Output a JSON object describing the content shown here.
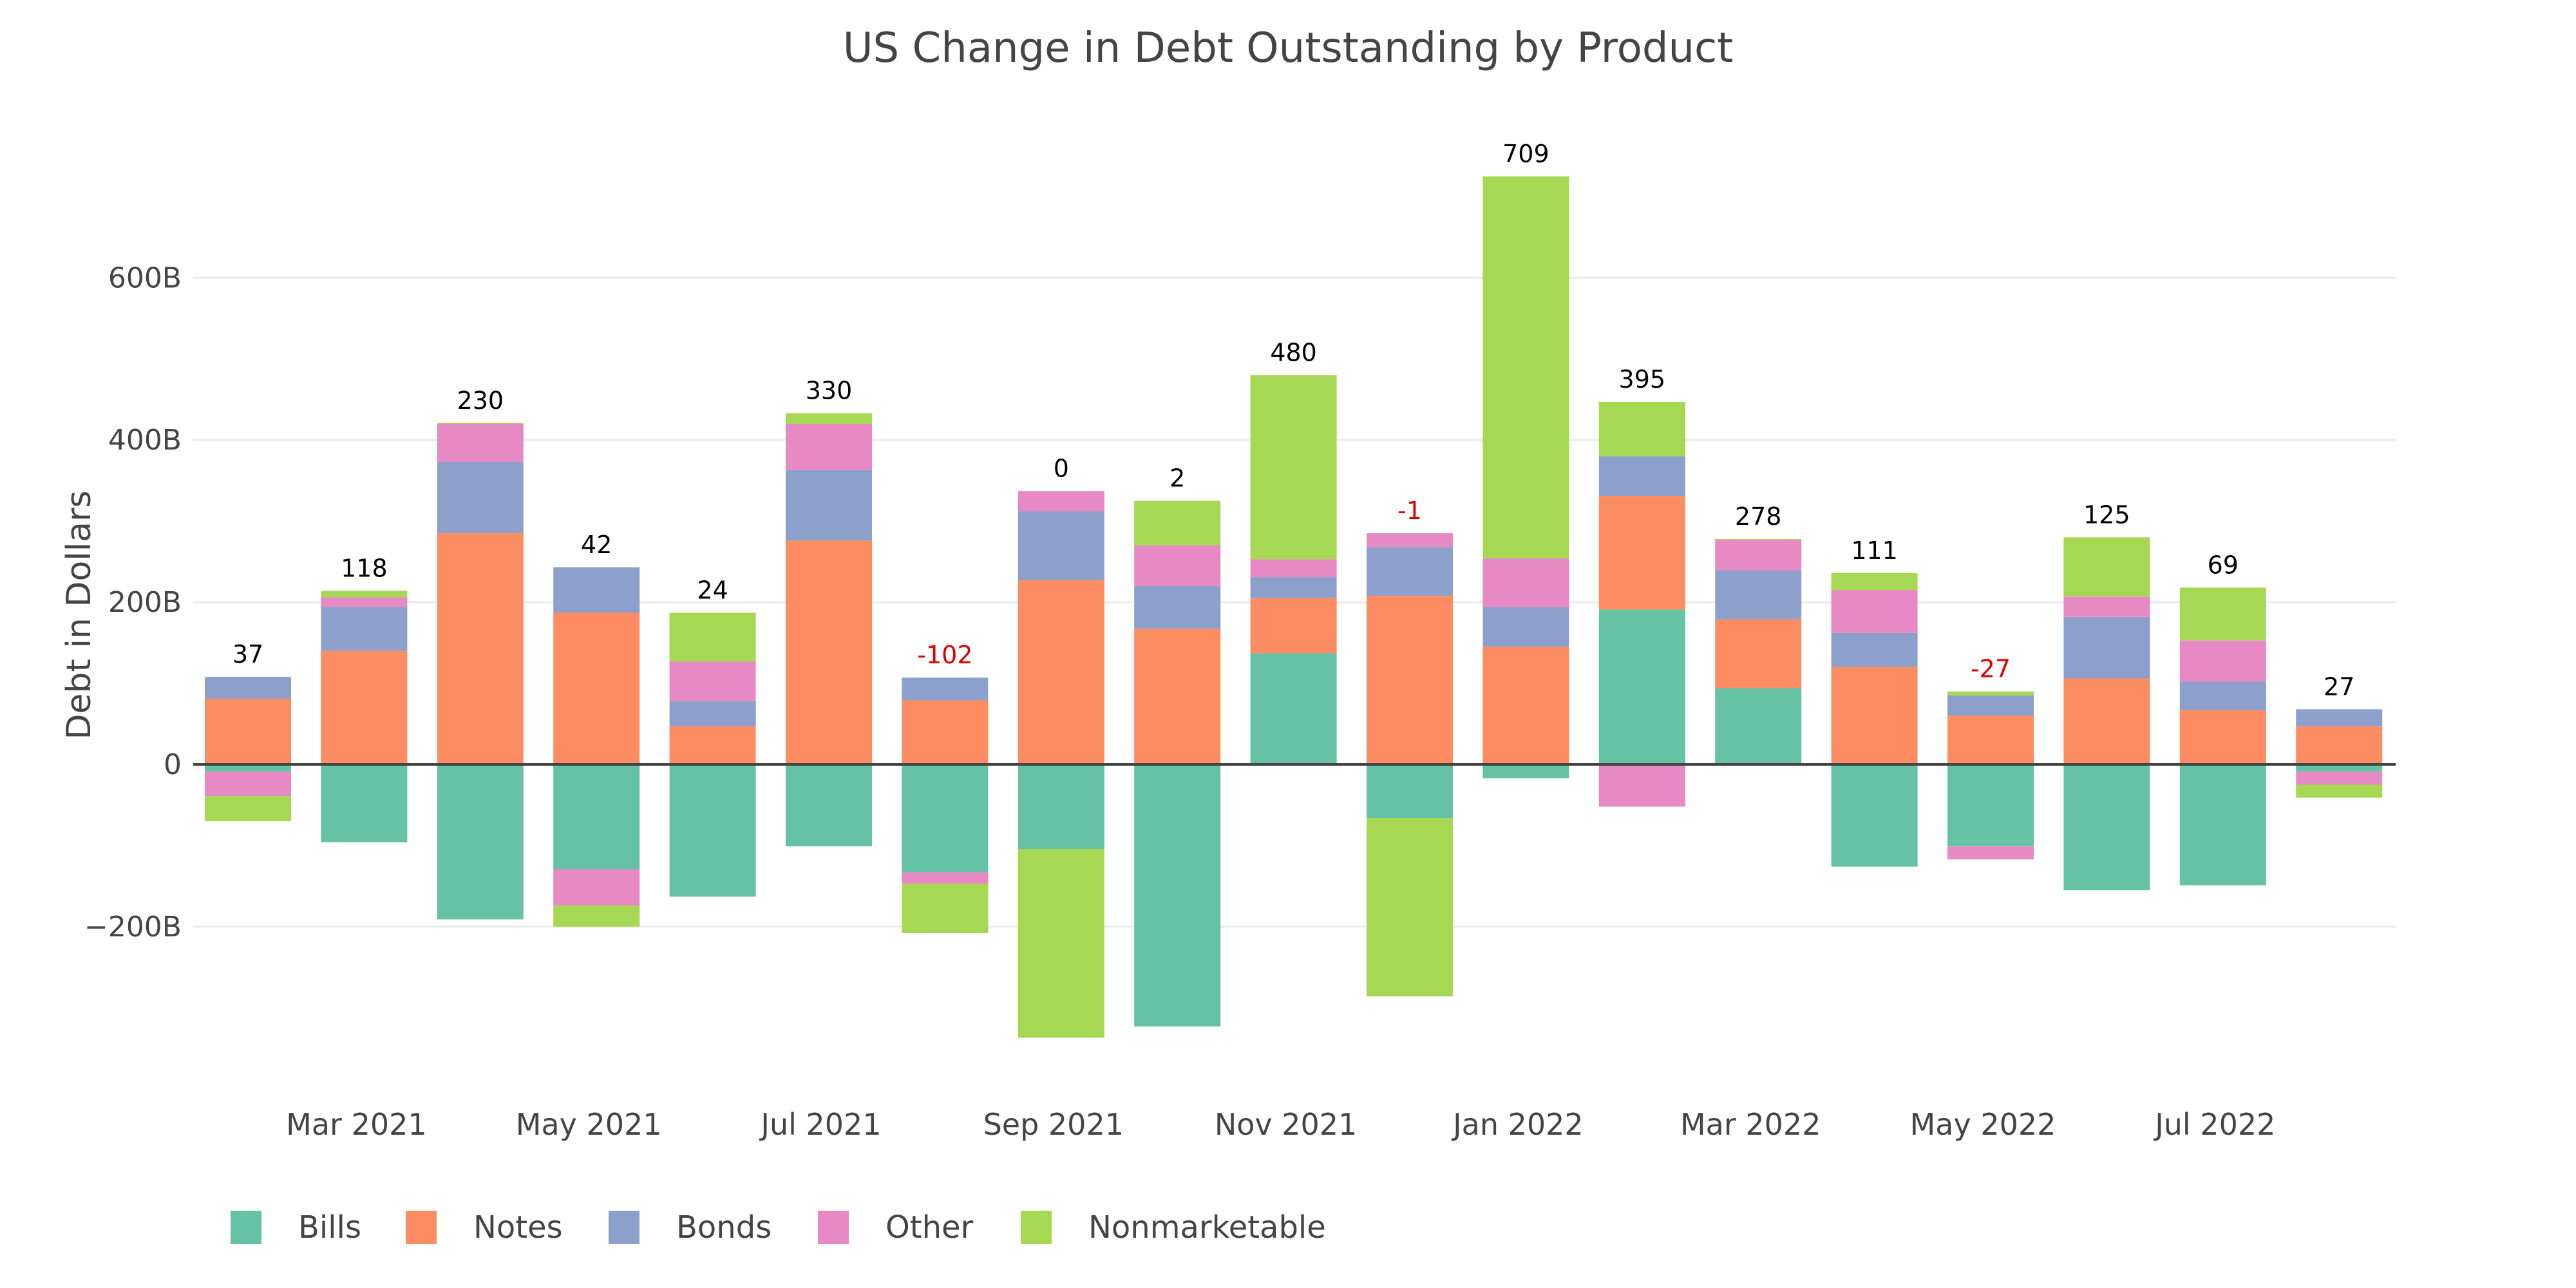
{
  "chart_data": {
    "type": "bar",
    "barmode": "relative-stacked",
    "title": "US Change in Debt Outstanding by Product",
    "xlabel": "",
    "ylabel": "Debt in Dollars",
    "ylim": [
      -360,
      760
    ],
    "yunit": "B",
    "yticks": [
      {
        "value": -200,
        "label": "−200B"
      },
      {
        "value": 0,
        "label": "0"
      },
      {
        "value": 200,
        "label": "200B"
      },
      {
        "value": 400,
        "label": "400B"
      },
      {
        "value": 600,
        "label": "600B"
      }
    ],
    "grid": true,
    "legend_position": "bottom-left",
    "categories": [
      "Feb 2021",
      "Mar 2021",
      "Apr 2021",
      "May 2021",
      "Jun 2021",
      "Jul 2021",
      "Aug 2021",
      "Sep 2021",
      "Oct 2021",
      "Nov 2021",
      "Dec 2021",
      "Jan 2022",
      "Feb 2022",
      "Mar 2022",
      "Apr 2022",
      "May 2022",
      "Jun 2022",
      "Jul 2022",
      "Aug 2022"
    ],
    "xticks": [
      {
        "category_index": 1,
        "label": "Mar 2021"
      },
      {
        "category_index": 3,
        "label": "May 2021"
      },
      {
        "category_index": 5,
        "label": "Jul 2021"
      },
      {
        "category_index": 7,
        "label": "Sep 2021"
      },
      {
        "category_index": 9,
        "label": "Nov 2021"
      },
      {
        "category_index": 11,
        "label": "Jan 2022"
      },
      {
        "category_index": 13,
        "label": "Mar 2022"
      },
      {
        "category_index": 15,
        "label": "May 2022"
      },
      {
        "category_index": 17,
        "label": "Jul 2022"
      }
    ],
    "series": [
      {
        "name": "Bills",
        "color": "#66c2a5",
        "values": [
          -9,
          -96,
          -191,
          -129,
          -163,
          -101,
          -133,
          -104,
          -323,
          137,
          -66,
          -17,
          191,
          94,
          -126,
          -101,
          -155,
          -149,
          -9
        ]
      },
      {
        "name": "Notes",
        "color": "#fc8d62",
        "values": [
          81,
          140,
          285,
          187,
          47,
          276,
          79,
          227,
          167,
          68,
          208,
          145,
          140,
          85,
          120,
          60,
          106,
          67,
          47
        ]
      },
      {
        "name": "Bonds",
        "color": "#8da0cb",
        "values": [
          27,
          54,
          88,
          56,
          31,
          87,
          28,
          85,
          53,
          26,
          60,
          49,
          49,
          60,
          42,
          25,
          76,
          35,
          21
        ]
      },
      {
        "name": "Other",
        "color": "#e78ac3",
        "values": [
          -30,
          12,
          47,
          -45,
          49,
          57,
          -14,
          25,
          50,
          22,
          17,
          60,
          -52,
          38,
          53,
          -16,
          25,
          51,
          -16
        ]
      },
      {
        "name": "Nonmarketable",
        "color": "#a6d854",
        "values": [
          -31,
          8,
          1,
          -26,
          60,
          13,
          -61,
          -233,
          55,
          227,
          -220,
          471,
          67,
          1,
          21,
          5,
          73,
          65,
          -16
        ]
      }
    ],
    "totals": [
      37,
      118,
      230,
      42,
      24,
      330,
      -102,
      0,
      2,
      480,
      -1,
      709,
      395,
      278,
      111,
      -27,
      125,
      69,
      27
    ],
    "total_label_colors": {
      "positive": "#000000",
      "negative": "#e00000"
    }
  }
}
